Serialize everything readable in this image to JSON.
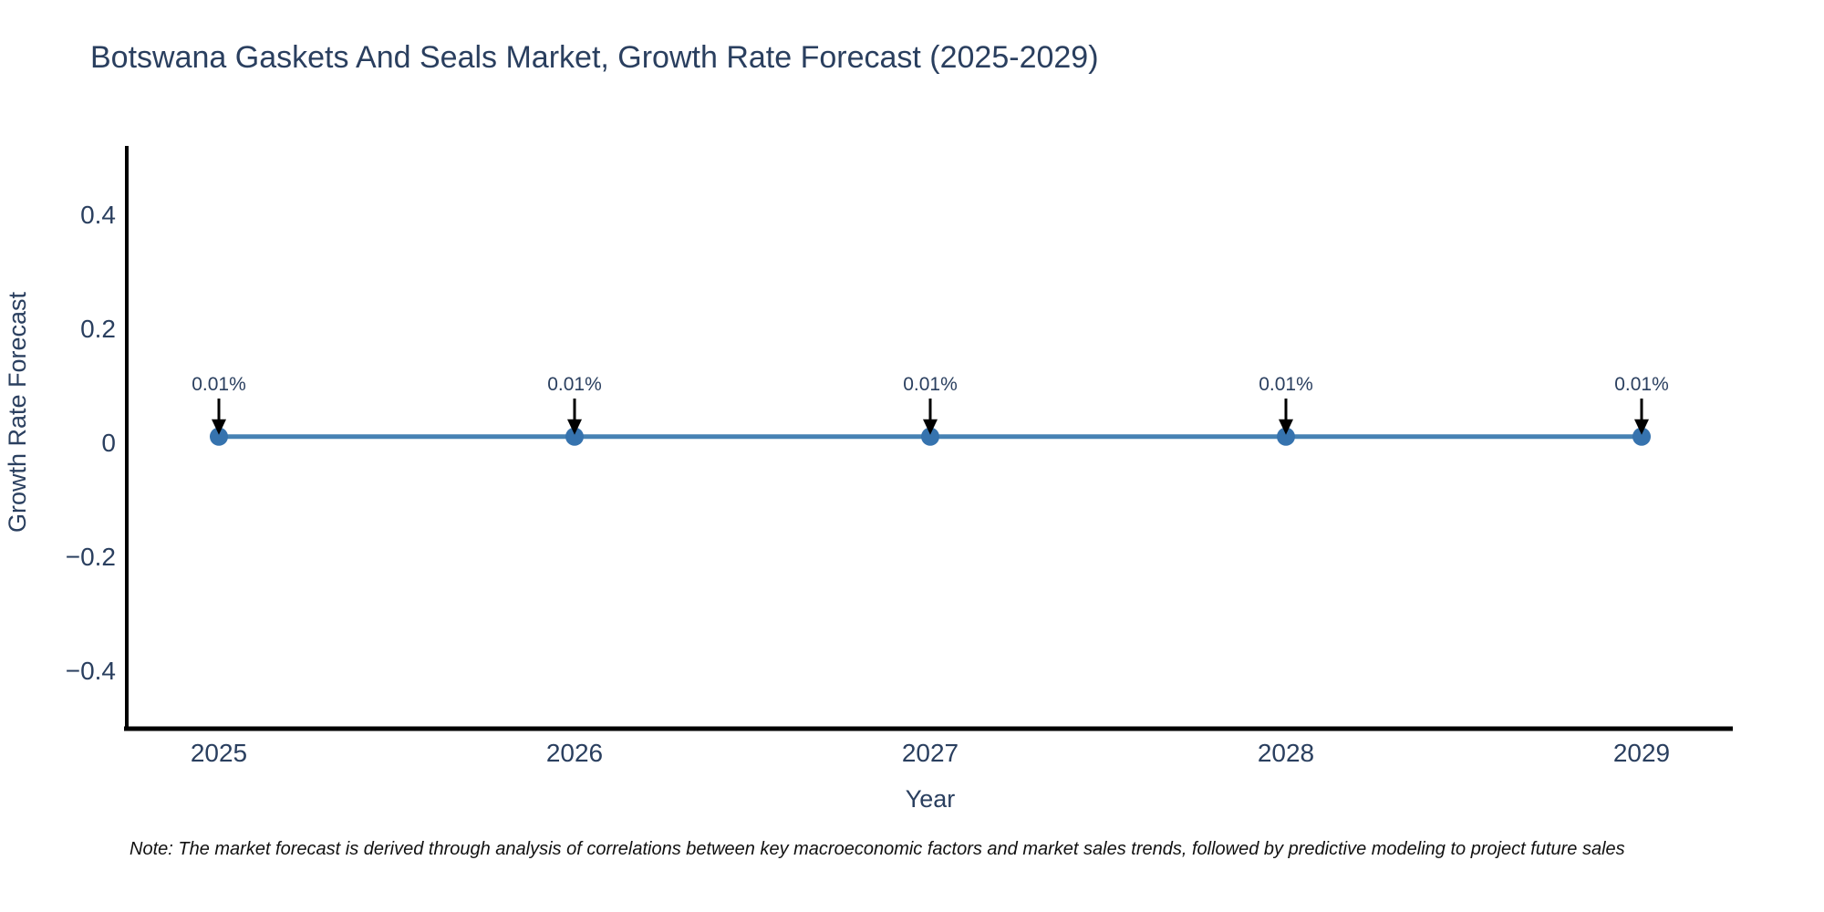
{
  "title": "Botswana Gaskets And Seals Market, Growth Rate Forecast (2025-2029)",
  "note": "Note: The market forecast is derived through analysis of correlations between key macroeconomic factors and market sales trends, followed by predictive modeling to project future sales",
  "chart_data": {
    "type": "line",
    "title": "Botswana Gaskets And Seals Market, Growth Rate Forecast (2025-2029)",
    "categories": [
      "2025",
      "2026",
      "2027",
      "2028",
      "2029"
    ],
    "series": [
      {
        "name": "Growth Rate Forecast",
        "values": [
          0.01,
          0.01,
          0.01,
          0.01,
          0.01
        ]
      }
    ],
    "point_labels": [
      "0.01%",
      "0.01%",
      "0.01%",
      "0.01%",
      "0.01%"
    ],
    "xlabel": "Year",
    "ylabel": "Growth Rate Forecast",
    "yticks": [
      0.4,
      0.2,
      0,
      -0.2,
      -0.4
    ],
    "ytick_labels": [
      "0.4",
      "0.2",
      "0",
      "−0.2",
      "−0.4"
    ],
    "ylim": [
      -0.5,
      0.52
    ],
    "grid": false,
    "legend_position": "none",
    "colors": {
      "line": "#4682b4",
      "marker": "#3673ae",
      "axis": "#000000",
      "text": "#2a3f5f",
      "annotation_arrow": "#000000"
    }
  }
}
